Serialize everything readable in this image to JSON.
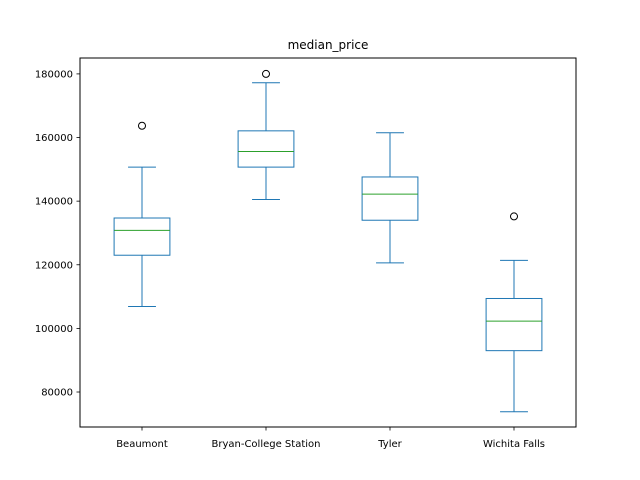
{
  "chart_data": {
    "type": "box",
    "title": "median_price",
    "xlabel": "",
    "ylabel": "",
    "ylim": [
      69000,
      185000
    ],
    "yticks": [
      80000,
      100000,
      120000,
      140000,
      160000,
      180000
    ],
    "ytick_labels": [
      "80000",
      "100000",
      "120000",
      "140000",
      "160000",
      "180000"
    ],
    "grid": false,
    "categories": [
      "Beaumont",
      "Bryan-College Station",
      "Tyler",
      "Wichita Falls"
    ],
    "boxes": [
      {
        "name": "Beaumont",
        "whisker_low": 106900,
        "q1": 123000,
        "median": 130800,
        "q3": 134700,
        "whisker_high": 150700,
        "outliers": [
          163700
        ]
      },
      {
        "name": "Bryan-College Station",
        "whisker_low": 140500,
        "q1": 150700,
        "median": 155600,
        "q3": 162100,
        "whisker_high": 177200,
        "outliers": [
          180000
        ]
      },
      {
        "name": "Tyler",
        "whisker_low": 120600,
        "q1": 134000,
        "median": 142200,
        "q3": 147600,
        "whisker_high": 161500,
        "outliers": []
      },
      {
        "name": "Wichita Falls",
        "whisker_low": 73800,
        "q1": 93000,
        "median": 102300,
        "q3": 109400,
        "whisker_high": 121400,
        "outliers": [
          135200
        ]
      }
    ],
    "colors": {
      "box": "#1f77b4",
      "median": "#2ca02c",
      "outlier": "#000000",
      "axes": "#000000"
    }
  }
}
